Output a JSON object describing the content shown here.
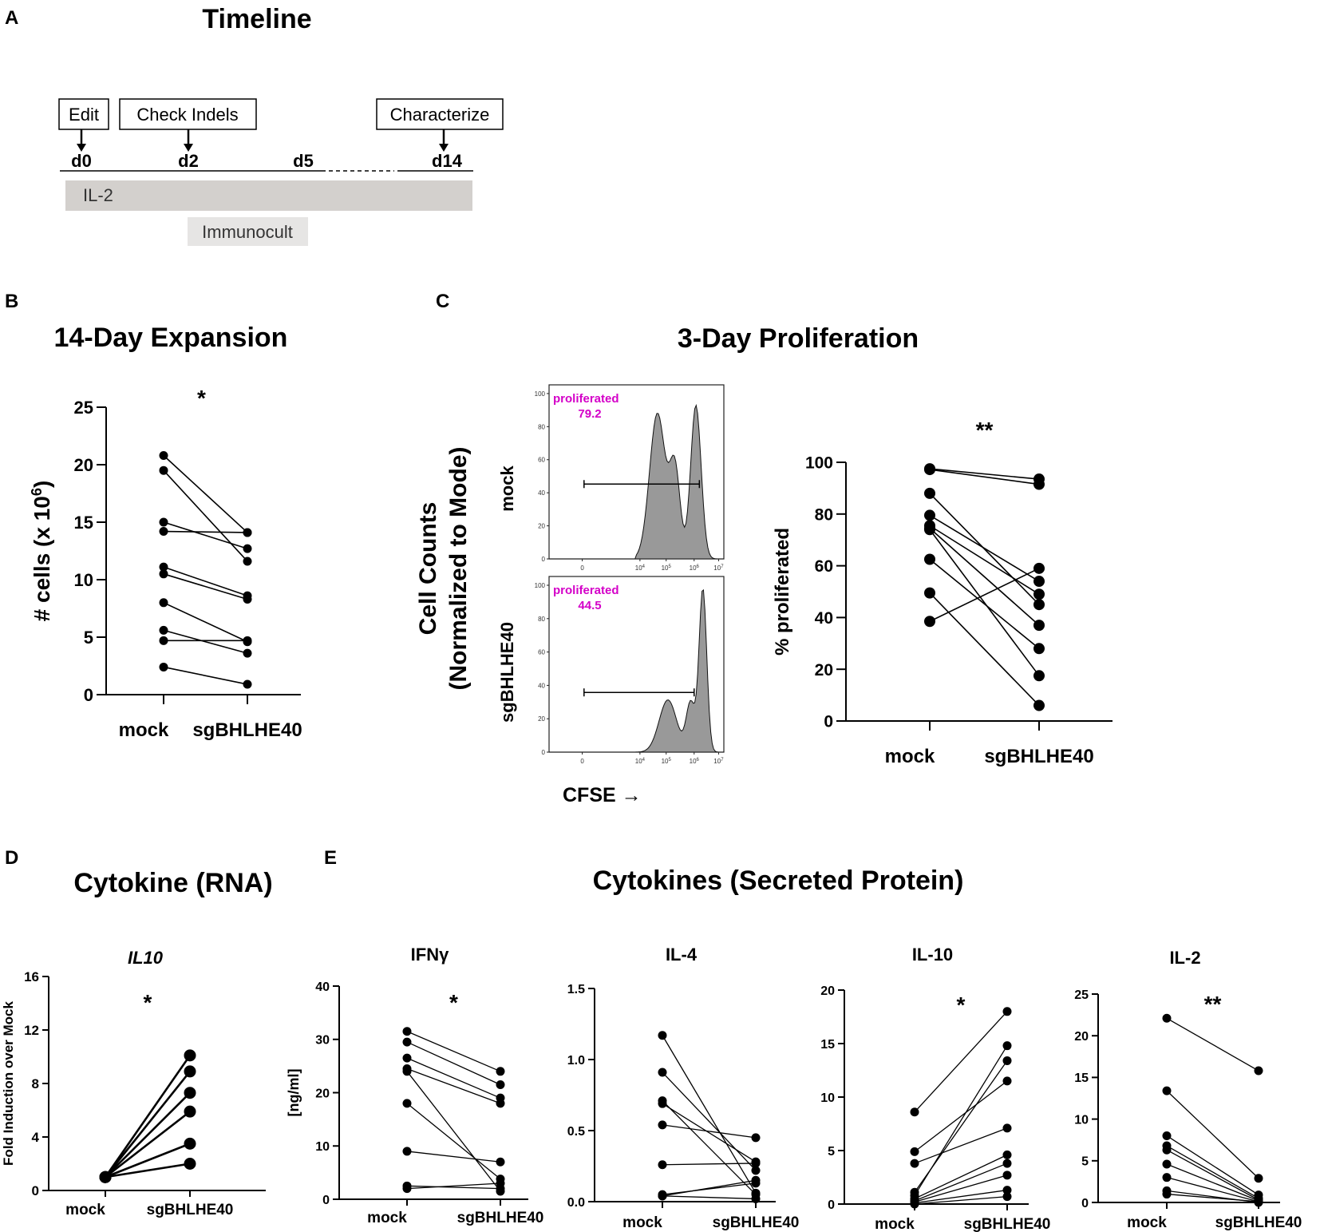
{
  "panel_labels": {
    "A": "A",
    "B": "B",
    "C": "C",
    "D": "D",
    "E": "E"
  },
  "timeline": {
    "title": "Timeline",
    "boxes": [
      "Edit",
      "Check Indels",
      "Characterize"
    ],
    "days": [
      "d0",
      "d2",
      "d5",
      "d14"
    ],
    "bars": [
      "IL-2",
      "Immunocult"
    ]
  },
  "flow": {
    "title": "3-Day Proliferation",
    "ylabel_line1": "Cell Counts",
    "ylabel_line2": "(Normalized to Mode)",
    "xlabel": "CFSE →",
    "y_ticks": [
      "0",
      "20",
      "40",
      "60",
      "80",
      "100"
    ],
    "x_ticks": [
      {
        "base": "0",
        "exp": ""
      },
      {
        "base": "10",
        "exp": "4"
      },
      {
        "base": "10",
        "exp": "5"
      },
      {
        "base": "10",
        "exp": "6"
      },
      {
        "base": "10",
        "exp": "7"
      }
    ],
    "plots": [
      {
        "sample": "mock",
        "gate_label": "proliferated",
        "gate_value": "79.2"
      },
      {
        "sample": "sgBHLHE40",
        "gate_label": "proliferated",
        "gate_value": "44.5"
      }
    ]
  },
  "chart_data": [
    {
      "id": "B",
      "type": "paired-scatter",
      "title": "14-Day Expansion",
      "ylabel": "# cells (x 10",
      "ylabel_sup": "6",
      "ylabel_end": ")",
      "categories": [
        "mock",
        "sgBHLHE40"
      ],
      "ylim": [
        0,
        25
      ],
      "yticks": [
        "0",
        "5",
        "10",
        "15",
        "20",
        "25"
      ],
      "significance": "*",
      "pairs": [
        [
          20.8,
          14.1
        ],
        [
          19.5,
          11.6
        ],
        [
          15.0,
          12.7
        ],
        [
          14.2,
          14.1
        ],
        [
          11.1,
          8.6
        ],
        [
          10.5,
          8.3
        ],
        [
          8.0,
          4.6
        ],
        [
          5.6,
          3.6
        ],
        [
          4.7,
          4.7
        ],
        [
          2.4,
          0.9
        ]
      ]
    },
    {
      "id": "C",
      "type": "paired-scatter",
      "title": "",
      "ylabel": "% proliferated",
      "categories": [
        "mock",
        "sgBHLHE40"
      ],
      "ylim": [
        0,
        100
      ],
      "yticks": [
        "0",
        "20",
        "40",
        "60",
        "80",
        "100"
      ],
      "significance": "**",
      "pairs": [
        [
          97.5,
          93.5
        ],
        [
          97.2,
          91.5
        ],
        [
          88.0,
          45.0
        ],
        [
          79.5,
          54.0
        ],
        [
          75.5,
          49.0
        ],
        [
          74.0,
          17.5
        ],
        [
          62.5,
          28.0
        ],
        [
          49.5,
          6.0
        ],
        [
          38.5,
          59.0
        ],
        [
          74.5,
          37.0
        ]
      ]
    },
    {
      "id": "D",
      "type": "paired-scatter",
      "title": "Cytokine (RNA)",
      "subtitle": "IL10",
      "ylabel": "Fold Induction over Mock",
      "categories": [
        "mock",
        "sgBHLHE40"
      ],
      "ylim": [
        0,
        16
      ],
      "yticks": [
        "0",
        "4",
        "8",
        "12",
        "16"
      ],
      "significance": "*",
      "pairs": [
        [
          1.0,
          10.1
        ],
        [
          1.0,
          8.9
        ],
        [
          1.0,
          7.3
        ],
        [
          1.0,
          5.9
        ],
        [
          1.0,
          3.5
        ],
        [
          1.0,
          2.0
        ]
      ]
    },
    {
      "id": "E1",
      "type": "paired-scatter",
      "group_title": "Cytokines (Secreted Protein)",
      "title": "IFNγ",
      "ylabel": "[ng/ml]",
      "categories": [
        "mock",
        "sgBHLHE40"
      ],
      "ylim": [
        0,
        40
      ],
      "yticks": [
        "0",
        "10",
        "20",
        "30",
        "40"
      ],
      "significance": "*",
      "pairs": [
        [
          31.5,
          24.0
        ],
        [
          29.5,
          21.5
        ],
        [
          26.5,
          19.0
        ],
        [
          24.5,
          18.0
        ],
        [
          24.0,
          1.5
        ],
        [
          18.0,
          3.8
        ],
        [
          9.0,
          7.0
        ],
        [
          2.5,
          2.0
        ],
        [
          2.0,
          3.0
        ]
      ]
    },
    {
      "id": "E2",
      "type": "paired-scatter",
      "title": "IL-4",
      "ylabel": "",
      "categories": [
        "mock",
        "sgBHLHE40"
      ],
      "ylim": [
        0,
        1.5
      ],
      "yticks": [
        "0.0",
        "0.5",
        "1.0",
        "1.5"
      ],
      "significance": "",
      "pairs": [
        [
          1.17,
          0.06
        ],
        [
          0.91,
          0.22
        ],
        [
          0.71,
          0.05
        ],
        [
          0.69,
          0.28
        ],
        [
          0.54,
          0.45
        ],
        [
          0.26,
          0.27
        ],
        [
          0.05,
          0.13
        ],
        [
          0.04,
          0.02
        ],
        [
          0.04,
          0.15
        ]
      ]
    },
    {
      "id": "E3",
      "type": "paired-scatter",
      "title": "IL-10",
      "ylabel": "",
      "categories": [
        "mock",
        "sgBHLHE40"
      ],
      "ylim": [
        0,
        20
      ],
      "yticks": [
        "0",
        "5",
        "10",
        "15",
        "20"
      ],
      "significance": "*",
      "pairs": [
        [
          8.6,
          18.0
        ],
        [
          4.9,
          11.5
        ],
        [
          3.8,
          7.1
        ],
        [
          1.1,
          13.4
        ],
        [
          0.8,
          14.8
        ],
        [
          0.5,
          4.6
        ],
        [
          0.3,
          3.8
        ],
        [
          0.2,
          2.7
        ],
        [
          0.1,
          1.3
        ],
        [
          0.0,
          0.7
        ]
      ]
    },
    {
      "id": "E4",
      "type": "paired-scatter",
      "title": "IL-2",
      "ylabel": "",
      "categories": [
        "mock",
        "sgBHLHE40"
      ],
      "ylim": [
        0,
        25
      ],
      "yticks": [
        "0",
        "5",
        "10",
        "15",
        "20",
        "25"
      ],
      "significance": "**",
      "pairs": [
        [
          22.1,
          15.8
        ],
        [
          13.4,
          2.9
        ],
        [
          8.0,
          0.9
        ],
        [
          6.8,
          0.5
        ],
        [
          6.3,
          0.3
        ],
        [
          4.6,
          0.2
        ],
        [
          3.0,
          0.1
        ],
        [
          1.4,
          0.0
        ],
        [
          1.0,
          0.1
        ]
      ]
    }
  ]
}
